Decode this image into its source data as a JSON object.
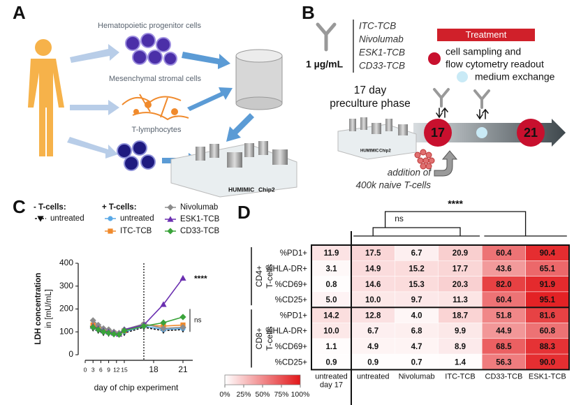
{
  "panel_a": {
    "label": "A",
    "cells": [
      "Hematopoietic progenitor cells",
      "Mesenchymal stromal cells",
      "T-lymphocytes"
    ],
    "chip": [
      "HUMIMIC",
      "Chip2"
    ]
  },
  "panel_b": {
    "label": "B",
    "dose": "1 µg/mL",
    "antibodies": [
      "ITC-TCB",
      "Nivolumab",
      "ESK1-TCB",
      "CD33-TCB"
    ],
    "treatment": "Treatment",
    "sampling": [
      "cell sampling and",
      "flow cytometry readout"
    ],
    "exchange": "medium exchange",
    "phase": [
      "17 day",
      "preculture phase"
    ],
    "days": [
      "17",
      "21"
    ],
    "addition": [
      "addition of",
      "400k naive T-cells"
    ],
    "chip": [
      "HUMIMIC",
      "Chip2"
    ]
  },
  "chart_data": [
    {
      "type": "line",
      "panel": "C",
      "ylabel": [
        "LDH concentration",
        "in [mU/mL]"
      ],
      "xlabel": "day of chip experiment",
      "x": [
        3,
        5,
        7,
        9,
        11,
        13,
        15,
        17,
        19,
        21
      ],
      "xlim": [
        0,
        22
      ],
      "xticks": [
        0,
        3,
        6,
        9,
        12,
        15,
        18,
        21
      ],
      "ylim": [
        0,
        400
      ],
      "yticks": [
        0,
        100,
        200,
        300,
        400
      ],
      "treatment_start": 17,
      "series_groups": [
        {
          "title": "- T-cells:",
          "series": [
            {
              "name": "untreated",
              "color": "#111111",
              "marker": "triangle-down",
              "dashed": true,
              "values": [
                115,
                105,
                95,
                92,
                90,
                88,
                95,
                120,
                105,
                110
              ]
            }
          ]
        },
        {
          "title": "+ T-cells:",
          "series": [
            {
              "name": "untreated",
              "color": "#5aa9e6",
              "marker": "circle",
              "dashed": false,
              "values": [
                120,
                110,
                100,
                95,
                92,
                90,
                100,
                125,
                110,
                115
              ]
            },
            {
              "name": "ITC-TCB",
              "color": "#f08a2c",
              "marker": "square",
              "dashed": false,
              "values": [
                130,
                115,
                105,
                100,
                95,
                90,
                105,
                130,
                125,
                130
              ]
            },
            {
              "name": "Nivolumab",
              "color": "#8c8c8c",
              "marker": "diamond",
              "dashed": false,
              "values": [
                150,
                130,
                115,
                110,
                100,
                95,
                110,
                135,
                115,
                120
              ]
            },
            {
              "name": "ESK1-TCB",
              "color": "#6a2fb0",
              "marker": "triangle-up",
              "dashed": false,
              "values": [
                125,
                115,
                105,
                100,
                95,
                90,
                110,
                130,
                220,
                335
              ]
            },
            {
              "name": "CD33-TCB",
              "color": "#3aa33a",
              "marker": "diamond",
              "dashed": false,
              "values": [
                120,
                110,
                100,
                95,
                90,
                88,
                105,
                125,
                140,
                165
              ]
            }
          ]
        }
      ],
      "annotations": [
        "****",
        "ns"
      ]
    },
    {
      "type": "heatmap",
      "panel": "D",
      "columns": [
        [
          "untreated",
          "day 17"
        ],
        [
          "untreated"
        ],
        [
          "Nivolumab"
        ],
        [
          "ITC-TCB"
        ],
        [
          "CD33-TCB"
        ],
        [
          "ESK1-TCB"
        ]
      ],
      "rows": [
        "%PD1+",
        "%HLA-DR+",
        "%CD69+",
        "%CD25+",
        "%PD1+",
        "%HLA-DR+",
        "%CD69+",
        "%CD25+"
      ],
      "groups": [
        [
          "CD4+",
          "T-cells"
        ],
        [
          "CD8+",
          "T-cells"
        ]
      ],
      "values": [
        [
          11.9,
          17.5,
          6.7,
          20.9,
          60.4,
          90.4
        ],
        [
          3.1,
          14.9,
          15.2,
          17.7,
          43.6,
          65.1
        ],
        [
          0.8,
          14.6,
          15.3,
          20.3,
          82,
          91.9
        ],
        [
          5,
          10,
          9.7,
          11.3,
          60.4,
          95.1
        ],
        [
          14.2,
          12.8,
          4,
          18.7,
          51.8,
          81.6
        ],
        [
          10,
          6.7,
          6.8,
          9.9,
          44.9,
          60.8
        ],
        [
          1.1,
          4.9,
          4.7,
          8.9,
          68.5,
          88.3
        ],
        [
          0.9,
          0.9,
          0.7,
          1.4,
          56.3,
          90
        ]
      ],
      "value_labels": [
        [
          "11.9",
          "17.5",
          "6.7",
          "20.9",
          "60.4",
          "90.4"
        ],
        [
          "3.1",
          "14.9",
          "15.2",
          "17.7",
          "43.6",
          "65.1"
        ],
        [
          "0.8",
          "14.6",
          "15.3",
          "20.3",
          "82.0",
          "91.9"
        ],
        [
          "5.0",
          "10.0",
          "9.7",
          "11.3",
          "60.4",
          "95.1"
        ],
        [
          "14.2",
          "12.8",
          "4.0",
          "18.7",
          "51.8",
          "81.6"
        ],
        [
          "10.0",
          "6.7",
          "6.8",
          "9.9",
          "44.9",
          "60.8"
        ],
        [
          "1.1",
          "4.9",
          "4.7",
          "8.9",
          "68.5",
          "88.3"
        ],
        [
          "0.9",
          "0.9",
          "0.7",
          "1.4",
          "56.3",
          "90.0"
        ]
      ],
      "color_low": "#ffffff",
      "color_high": "#e2171a",
      "colorbar": {
        "lim": [
          0,
          100
        ],
        "ticks": [
          {
            "value": 0,
            "label": "0%"
          },
          {
            "value": 25,
            "label": "25%"
          },
          {
            "value": 50,
            "label": "50%"
          },
          {
            "value": 75,
            "label": "75%"
          },
          {
            "value": 100,
            "label": "100%"
          }
        ]
      },
      "significance": [
        "****",
        "ns"
      ]
    }
  ]
}
